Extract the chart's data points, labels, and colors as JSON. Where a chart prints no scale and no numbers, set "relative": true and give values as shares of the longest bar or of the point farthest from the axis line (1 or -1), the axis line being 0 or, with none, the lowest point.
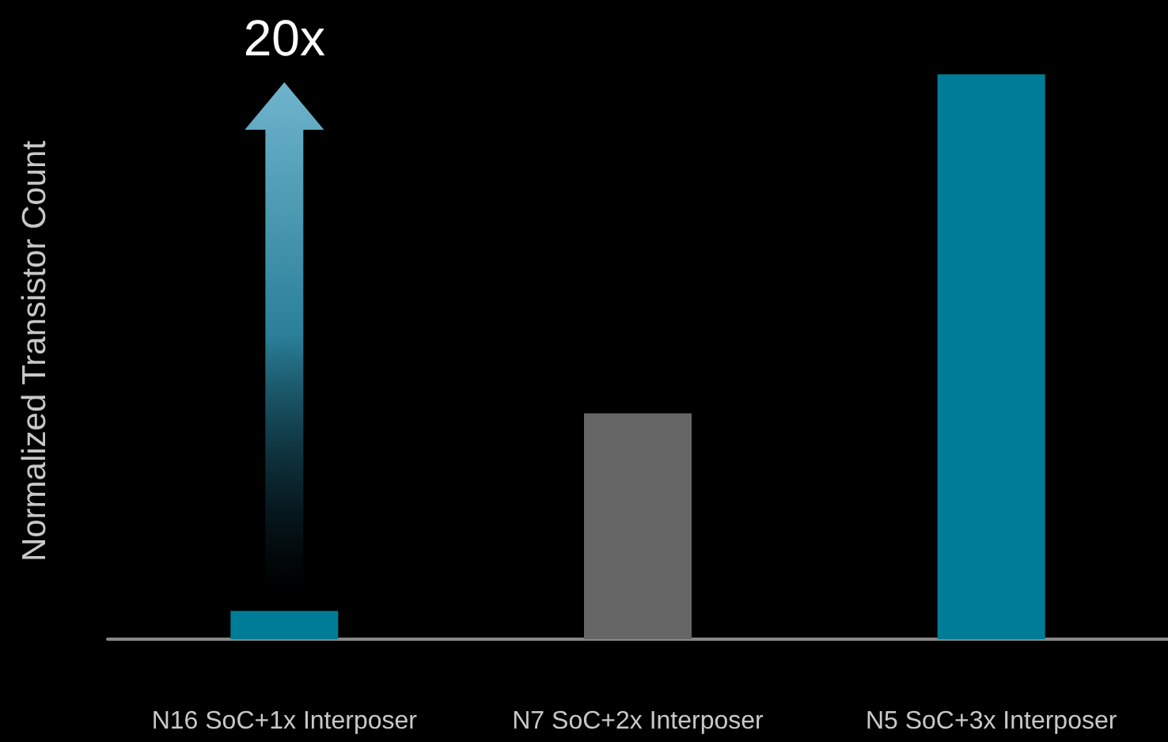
{
  "chart_data": {
    "type": "bar",
    "ylabel": "Normalized Transistor Count",
    "relative": true,
    "categories": [
      "N16 SoC+1x Interposer",
      "N7 SoC+2x Interposer",
      "N5 SoC+3x Interposer"
    ],
    "values": [
      0.05,
      0.4,
      1
    ],
    "colors": [
      "#007c96",
      "#666666",
      "#007c96"
    ],
    "annotations": [
      "20x"
    ]
  }
}
